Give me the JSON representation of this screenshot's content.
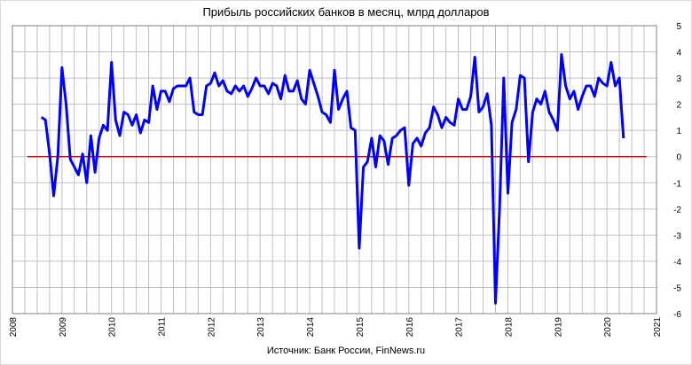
{
  "chart_data": {
    "type": "line",
    "title": "Прибыль российских банков в месяц, млрд долларов",
    "source_label": "Источник: Банк России,",
    "source_site": "FinNews.ru",
    "xlabel": "",
    "ylabel": "",
    "xlim": [
      2008,
      2021
    ],
    "ylim": [
      -6,
      5
    ],
    "x_ticks": [
      "2008",
      "2009",
      "2010",
      "2011",
      "2012",
      "2013",
      "2014",
      "2015",
      "2016",
      "2017",
      "2018",
      "2019",
      "2020",
      "2021"
    ],
    "y_ticks": [
      "5",
      "4",
      "3",
      "2",
      "1",
      "0",
      "-1",
      "-2",
      "-3",
      "-4",
      "-5",
      "-6"
    ],
    "grid": true,
    "legend": "none",
    "colors": {
      "series": "#0000ff",
      "zero_line": "#c00000",
      "grid": "#c0c0c0"
    },
    "series": [
      {
        "x": [
          2008.583,
          2008.667,
          2008.75,
          2008.833,
          2008.917,
          2009.0,
          2009.083,
          2009.167,
          2009.25,
          2009.333,
          2009.417,
          2009.5,
          2009.583,
          2009.667,
          2009.75,
          2009.833,
          2009.917,
          2010.0,
          2010.083,
          2010.167,
          2010.25,
          2010.333,
          2010.417,
          2010.5,
          2010.583,
          2010.667,
          2010.75,
          2010.833,
          2010.917,
          2011.0,
          2011.083,
          2011.167,
          2011.25,
          2011.333,
          2011.417,
          2011.5,
          2011.583,
          2011.667,
          2011.75,
          2011.833,
          2011.917,
          2012.0,
          2012.083,
          2012.167,
          2012.25,
          2012.333,
          2012.417,
          2012.5,
          2012.583,
          2012.667,
          2012.75,
          2012.833,
          2012.917,
          2013.0,
          2013.083,
          2013.167,
          2013.25,
          2013.333,
          2013.417,
          2013.5,
          2013.583,
          2013.667,
          2013.75,
          2013.833,
          2013.917,
          2014.0,
          2014.083,
          2014.167,
          2014.25,
          2014.333,
          2014.417,
          2014.5,
          2014.583,
          2014.667,
          2014.75,
          2014.833,
          2014.917,
          2015.0,
          2015.083,
          2015.167,
          2015.25,
          2015.333,
          2015.417,
          2015.5,
          2015.583,
          2015.667,
          2015.75,
          2015.833,
          2015.917,
          2016.0,
          2016.083,
          2016.167,
          2016.25,
          2016.333,
          2016.417,
          2016.5,
          2016.583,
          2016.667,
          2016.75,
          2016.833,
          2016.917,
          2017.0,
          2017.083,
          2017.167,
          2017.25,
          2017.333,
          2017.417,
          2017.5,
          2017.583,
          2017.667,
          2017.75,
          2017.833,
          2017.917,
          2018.0,
          2018.083,
          2018.167,
          2018.25,
          2018.333,
          2018.417,
          2018.5,
          2018.583,
          2018.667,
          2018.75,
          2018.833,
          2018.917,
          2019.0,
          2019.083,
          2019.167,
          2019.25,
          2019.333,
          2019.417,
          2019.5,
          2019.583,
          2019.667,
          2019.75,
          2019.833,
          2019.917,
          2020.0,
          2020.083,
          2020.167,
          2020.25,
          2020.333
        ],
        "y": [
          1.5,
          1.4,
          0.1,
          -1.5,
          0.0,
          3.4,
          2.0,
          -0.1,
          -0.4,
          -0.7,
          0.1,
          -1.0,
          0.8,
          -0.6,
          0.7,
          1.2,
          1.0,
          3.6,
          1.4,
          0.8,
          1.7,
          1.6,
          1.2,
          1.6,
          0.9,
          1.4,
          1.3,
          2.7,
          1.8,
          2.5,
          2.5,
          2.1,
          2.6,
          2.7,
          2.7,
          2.7,
          3.0,
          1.7,
          1.6,
          1.6,
          2.7,
          2.8,
          3.2,
          2.7,
          2.9,
          2.5,
          2.4,
          2.7,
          2.5,
          2.7,
          2.3,
          2.6,
          3.0,
          2.7,
          2.7,
          2.4,
          2.8,
          2.7,
          2.2,
          3.1,
          2.5,
          2.5,
          2.9,
          2.2,
          2.0,
          3.3,
          2.8,
          2.3,
          1.7,
          1.6,
          1.3,
          3.3,
          1.8,
          2.2,
          2.5,
          1.1,
          1.0,
          -3.5,
          -0.4,
          -0.2,
          0.7,
          -0.4,
          0.8,
          0.6,
          -0.3,
          0.7,
          0.8,
          1.0,
          1.1,
          -1.1,
          0.5,
          0.7,
          0.4,
          0.9,
          1.1,
          1.9,
          1.6,
          1.1,
          1.5,
          1.3,
          1.2,
          2.2,
          1.8,
          1.8,
          2.3,
          3.8,
          1.7,
          1.9,
          2.4,
          1.2,
          -5.6,
          -2.0,
          3.0,
          -1.4,
          1.3,
          1.8,
          3.1,
          3.0,
          -0.2,
          1.7,
          2.2,
          2.0,
          2.5,
          1.7,
          1.4,
          1.0,
          3.9,
          2.7,
          2.2,
          2.5,
          1.8,
          2.3,
          2.7,
          2.7,
          2.3,
          3.0,
          2.8,
          2.7,
          3.6,
          2.7,
          3.0,
          0.7
        ]
      }
    ]
  }
}
